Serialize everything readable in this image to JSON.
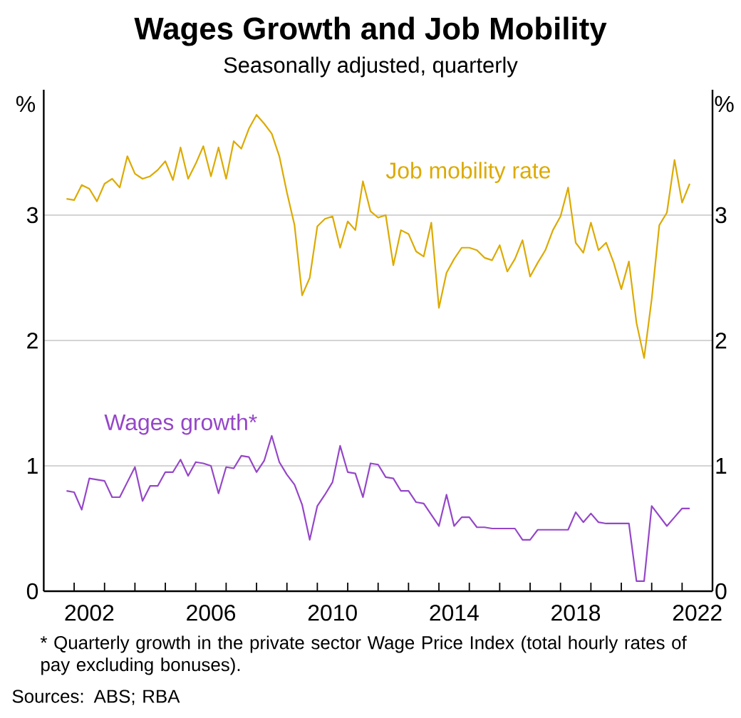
{
  "chart_data": {
    "type": "line",
    "title": "Wages Growth and Job Mobility",
    "subtitle": "Seasonally adjusted, quarterly",
    "ylabel": "%",
    "y2label": "%",
    "x": [
      2001.75,
      2002,
      2002.25,
      2002.5,
      2002.75,
      2003,
      2003.25,
      2003.5,
      2003.75,
      2004,
      2004.25,
      2004.5,
      2004.75,
      2005,
      2005.25,
      2005.5,
      2005.75,
      2006,
      2006.25,
      2006.5,
      2006.75,
      2007,
      2007.25,
      2007.5,
      2007.75,
      2008,
      2008.25,
      2008.5,
      2008.75,
      2009,
      2009.25,
      2009.5,
      2009.75,
      2010,
      2010.25,
      2010.5,
      2010.75,
      2011,
      2011.25,
      2011.5,
      2011.75,
      2012,
      2012.25,
      2012.5,
      2012.75,
      2013,
      2013.25,
      2013.5,
      2013.75,
      2014,
      2014.25,
      2014.5,
      2014.75,
      2015,
      2015.25,
      2015.5,
      2015.75,
      2016,
      2016.25,
      2016.5,
      2016.75,
      2017,
      2017.25,
      2017.5,
      2017.75,
      2018,
      2018.25,
      2018.5,
      2018.75,
      2019,
      2019.25,
      2019.5,
      2019.75,
      2020,
      2020.25,
      2020.5,
      2020.75,
      2021,
      2021.25,
      2021.5,
      2021.75,
      2022,
      2022.25
    ],
    "series": [
      {
        "name": "Job mobility rate",
        "color": "#dcaa00",
        "values": [
          3.13,
          3.12,
          3.24,
          3.21,
          3.11,
          3.25,
          3.29,
          3.22,
          3.47,
          3.33,
          3.29,
          3.31,
          3.36,
          3.43,
          3.28,
          3.54,
          3.29,
          3.41,
          3.55,
          3.31,
          3.54,
          3.29,
          3.59,
          3.53,
          3.69,
          3.8,
          3.73,
          3.65,
          3.47,
          3.18,
          2.92,
          2.36,
          2.5,
          2.91,
          2.97,
          2.99,
          2.74,
          2.95,
          2.88,
          3.27,
          3.03,
          2.98,
          3.0,
          2.6,
          2.88,
          2.85,
          2.71,
          2.67,
          2.94,
          2.26,
          2.54,
          2.65,
          2.74,
          2.74,
          2.72,
          2.66,
          2.64,
          2.76,
          2.55,
          2.65,
          2.8,
          2.51,
          2.62,
          2.72,
          2.88,
          2.99,
          3.22,
          2.78,
          2.7,
          2.94,
          2.72,
          2.78,
          2.62,
          2.41,
          2.63,
          2.14,
          1.86,
          2.33,
          2.92,
          3.02,
          3.44,
          3.1,
          3.25
        ]
      },
      {
        "name": "Wages growth*",
        "color": "#9546c8",
        "values": [
          0.8,
          0.79,
          0.65,
          0.9,
          0.89,
          0.88,
          0.75,
          0.75,
          0.87,
          0.99,
          0.72,
          0.84,
          0.84,
          0.95,
          0.95,
          1.05,
          0.92,
          1.03,
          1.02,
          1.0,
          0.78,
          0.99,
          0.98,
          1.08,
          1.07,
          0.95,
          1.04,
          1.24,
          1.03,
          0.93,
          0.85,
          0.69,
          0.41,
          0.68,
          0.77,
          0.87,
          1.16,
          0.95,
          0.94,
          0.75,
          1.02,
          1.01,
          0.91,
          0.9,
          0.8,
          0.8,
          0.71,
          0.7,
          0.61,
          0.52,
          0.77,
          0.52,
          0.59,
          0.59,
          0.51,
          0.51,
          0.5,
          0.5,
          0.5,
          0.5,
          0.41,
          0.41,
          0.49,
          0.49,
          0.49,
          0.49,
          0.49,
          0.63,
          0.55,
          0.62,
          0.55,
          0.54,
          0.54,
          0.54,
          0.54,
          0.08,
          0.08,
          0.68,
          0.6,
          0.52,
          0.59,
          0.66,
          0.66
        ]
      }
    ],
    "xlim": [
      2001,
      2023
    ],
    "xticks": [
      {
        "value": 2002.5,
        "label": "2002"
      },
      {
        "value": 2006.5,
        "label": "2006"
      },
      {
        "value": 2010.5,
        "label": "2010"
      },
      {
        "value": 2014.5,
        "label": "2014"
      },
      {
        "value": 2018.5,
        "label": "2018"
      },
      {
        "value": 2022.5,
        "label": "2022"
      },
      {
        "value": 2002,
        "label": null
      },
      {
        "value": 2003,
        "label": null
      },
      {
        "value": 2004,
        "label": null
      },
      {
        "value": 2005,
        "label": null
      },
      {
        "value": 2006,
        "label": null
      },
      {
        "value": 2007,
        "label": null
      },
      {
        "value": 2008,
        "label": null
      },
      {
        "value": 2009,
        "label": null
      },
      {
        "value": 2010,
        "label": null
      },
      {
        "value": 2011,
        "label": null
      },
      {
        "value": 2012,
        "label": null
      },
      {
        "value": 2013,
        "label": null
      },
      {
        "value": 2014,
        "label": null
      },
      {
        "value": 2015,
        "label": null
      },
      {
        "value": 2016,
        "label": null
      },
      {
        "value": 2017,
        "label": null
      },
      {
        "value": 2018,
        "label": null
      },
      {
        "value": 2019,
        "label": null
      },
      {
        "value": 2020,
        "label": null
      },
      {
        "value": 2021,
        "label": null
      },
      {
        "value": 2022,
        "label": null
      }
    ],
    "ylim": [
      0,
      4
    ],
    "yticks": [
      0,
      1,
      2,
      3
    ],
    "y2lim": [
      0,
      4
    ],
    "y2ticks": [
      0,
      1,
      2,
      3
    ],
    "grid": "y",
    "annotations": [
      "* Quarterly growth in the private sector Wage Price Index (total hourly rates of pay excluding bonuses).",
      "Sources: ABS; RBA"
    ]
  }
}
